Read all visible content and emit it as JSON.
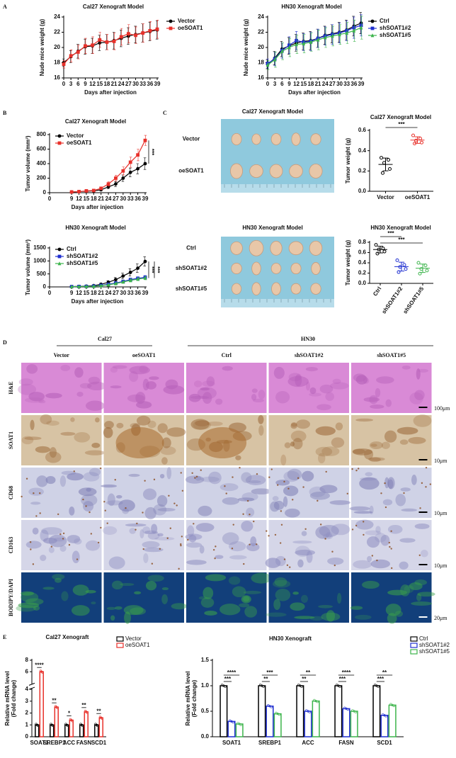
{
  "panel_labels": [
    "A",
    "B",
    "C",
    "D",
    "E"
  ],
  "chart_data": [
    {
      "type": "line",
      "title": "Cal27 Xenograft Model",
      "x_label": "Days after injection",
      "y_label": "Nude mice weight (g)",
      "x": [
        0,
        3,
        6,
        9,
        12,
        15,
        18,
        21,
        24,
        27,
        30,
        33,
        36,
        39
      ],
      "xlim": [
        0,
        39
      ],
      "xticks": [
        0,
        3,
        6,
        9,
        12,
        15,
        18,
        21,
        24,
        27,
        30,
        33,
        36,
        39
      ],
      "ylim": [
        16,
        24
      ],
      "yticks": [
        16,
        18,
        20,
        22,
        24
      ],
      "legend": "right",
      "series": [
        {
          "name": "Vector",
          "color": "#000000",
          "marker": "circle",
          "values": [
            18,
            18.8,
            19.5,
            20.1,
            20.2,
            20.6,
            20.7,
            20.9,
            21.2,
            21.5,
            21.7,
            21.9,
            22.1,
            22.3
          ],
          "errors": [
            0.5,
            0.8,
            0.9,
            1.0,
            1.0,
            1.0,
            1.0,
            1.1,
            1.1,
            1.1,
            1.1,
            1.2,
            1.2,
            1.2
          ]
        },
        {
          "name": "oeSOAT1",
          "color": "#e8302a",
          "marker": "square",
          "values": [
            17.8,
            18.9,
            19.4,
            20.2,
            20.3,
            21.0,
            20.7,
            20.8,
            21.4,
            21.8,
            21.6,
            21.9,
            22.2,
            22.4
          ],
          "errors": [
            0.5,
            0.8,
            0.9,
            1.0,
            1.1,
            1.0,
            1.0,
            1.1,
            1.1,
            1.2,
            1.1,
            1.2,
            1.2,
            1.2
          ]
        }
      ]
    },
    {
      "type": "line",
      "title": "HN30 Xenograft Model",
      "x_label": "Days after injection",
      "y_label": "Nude mice weight (g)",
      "x": [
        0,
        3,
        6,
        9,
        12,
        15,
        18,
        21,
        24,
        27,
        30,
        33,
        36,
        39
      ],
      "xlim": [
        0,
        39
      ],
      "xticks": [
        0,
        3,
        6,
        9,
        12,
        15,
        18,
        21,
        24,
        27,
        30,
        33,
        36,
        39
      ],
      "ylim": [
        16,
        24
      ],
      "yticks": [
        16,
        18,
        20,
        22,
        24
      ],
      "legend": "right",
      "series": [
        {
          "name": "Ctrl",
          "color": "#000000",
          "marker": "circle",
          "values": [
            17.8,
            18.6,
            19.8,
            20.2,
            20.6,
            20.8,
            20.9,
            21.2,
            21.6,
            21.8,
            22.0,
            22.3,
            22.8,
            23.2
          ],
          "errors": [
            0.6,
            0.9,
            1.0,
            1.1,
            1.1,
            1.1,
            1.2,
            1.2,
            1.2,
            1.2,
            1.3,
            1.3,
            1.3,
            1.4
          ]
        },
        {
          "name": "shSOAT1#2",
          "color": "#1f2fd0",
          "marker": "square",
          "values": [
            17.9,
            18.5,
            19.6,
            20.3,
            20.9,
            20.7,
            20.8,
            21.2,
            21.5,
            21.7,
            21.9,
            22.2,
            22.6,
            22.9
          ],
          "errors": [
            0.6,
            0.9,
            1.0,
            1.1,
            1.2,
            1.1,
            1.2,
            1.2,
            1.2,
            1.3,
            1.3,
            1.3,
            1.4,
            1.4
          ]
        },
        {
          "name": "shSOAT1#5",
          "color": "#3cb44b",
          "marker": "triangle",
          "values": [
            17.7,
            18.4,
            19.5,
            20.0,
            20.4,
            20.5,
            20.7,
            21.0,
            21.3,
            21.5,
            21.7,
            21.9,
            22.2,
            22.6
          ],
          "errors": [
            0.6,
            1.0,
            1.1,
            1.2,
            1.2,
            1.2,
            1.2,
            1.3,
            1.3,
            1.3,
            1.3,
            1.4,
            1.4,
            1.5
          ]
        }
      ]
    },
    {
      "type": "line",
      "title": "Cal27 Xenograft Model",
      "x_label": "Days after injection",
      "y_label": "Tumor volume (mm³)",
      "x": [
        9,
        12,
        15,
        18,
        21,
        24,
        27,
        30,
        33,
        36,
        39
      ],
      "xlim": [
        0,
        39
      ],
      "xticks": [
        0,
        9,
        12,
        15,
        18,
        21,
        24,
        27,
        30,
        33,
        36,
        39
      ],
      "ylim": [
        0,
        800
      ],
      "yticks": [
        0,
        200,
        400,
        600,
        800
      ],
      "legend": "upper-left",
      "annotations": [
        "***"
      ],
      "series": [
        {
          "name": "Vector",
          "color": "#000000",
          "marker": "circle",
          "values": [
            10,
            15,
            20,
            25,
            40,
            80,
            120,
            200,
            280,
            330,
            400
          ],
          "errors": [
            5,
            5,
            8,
            10,
            15,
            25,
            35,
            45,
            60,
            70,
            80
          ]
        },
        {
          "name": "oeSOAT1",
          "color": "#e8302a",
          "marker": "square",
          "values": [
            10,
            15,
            25,
            30,
            60,
            120,
            200,
            300,
            420,
            520,
            720
          ],
          "errors": [
            5,
            6,
            8,
            10,
            20,
            30,
            40,
            55,
            70,
            80,
            70
          ]
        }
      ]
    },
    {
      "type": "line",
      "title": "HN30 Xenograft Model",
      "x_label": "Days after injection",
      "y_label": "Tumor volume (mm³)",
      "x": [
        9,
        12,
        15,
        18,
        21,
        24,
        27,
        30,
        33,
        36,
        39
      ],
      "xlim": [
        0,
        39
      ],
      "xticks": [
        0,
        9,
        12,
        15,
        18,
        21,
        24,
        27,
        30,
        33,
        36,
        39
      ],
      "ylim": [
        0,
        1500
      ],
      "yticks": [
        0,
        500,
        1000,
        1500
      ],
      "legend": "upper-left",
      "annotations": [
        "***",
        "***"
      ],
      "series": [
        {
          "name": "Ctrl",
          "color": "#000000",
          "marker": "circle",
          "values": [
            10,
            20,
            30,
            50,
            100,
            180,
            280,
            420,
            560,
            720,
            980
          ],
          "errors": [
            5,
            8,
            12,
            20,
            40,
            60,
            80,
            110,
            140,
            160,
            180
          ]
        },
        {
          "name": "shSOAT1#2",
          "color": "#1f2fd0",
          "marker": "square",
          "values": [
            10,
            15,
            20,
            30,
            60,
            100,
            150,
            210,
            280,
            330,
            370
          ],
          "errors": [
            5,
            6,
            8,
            12,
            20,
            30,
            40,
            50,
            60,
            60,
            70
          ]
        },
        {
          "name": "shSOAT1#5",
          "color": "#3cb44b",
          "marker": "triangle",
          "values": [
            10,
            15,
            20,
            25,
            50,
            80,
            130,
            190,
            250,
            300,
            340
          ],
          "errors": [
            5,
            6,
            8,
            10,
            18,
            25,
            35,
            45,
            55,
            60,
            65
          ]
        }
      ]
    },
    {
      "type": "dot",
      "title": "Cal27 Xenograft Model",
      "y_label": "Tumor weight (g)",
      "categories": [
        "Vector",
        "oeSOAT1"
      ],
      "colors": [
        "#000000",
        "#e8302a"
      ],
      "values": [
        [
          0.33,
          0.31,
          0.28,
          0.22,
          0.18
        ],
        [
          0.55,
          0.52,
          0.5,
          0.48,
          0.47
        ]
      ],
      "ylim": [
        0,
        0.6
      ],
      "yticks": [
        {
          "value": 0,
          "label": "0.0"
        },
        0.2,
        0.4,
        0.6
      ],
      "significance": [
        "***"
      ],
      "rotate_labels": false
    },
    {
      "type": "dot",
      "title": "HN30 Xenograft Model",
      "y_label": "Tumor weight (g)",
      "categories": [
        "Ctrl",
        "shSOAT1#2",
        "shSOAT1#5"
      ],
      "colors": [
        "#000000",
        "#1f2fd0",
        "#3cb44b"
      ],
      "values": [
        [
          0.75,
          0.68,
          0.66,
          0.62,
          0.58
        ],
        [
          0.45,
          0.36,
          0.32,
          0.28,
          0.22
        ],
        [
          0.4,
          0.35,
          0.28,
          0.25,
          0.19
        ]
      ],
      "ylim": [
        0,
        0.8
      ],
      "yticks": [
        {
          "value": 0,
          "label": "0.0"
        },
        0.2,
        0.4,
        0.6,
        0.8
      ],
      "significance": [
        "***",
        "***"
      ],
      "rotate_labels": true
    },
    {
      "type": "bar",
      "title": "Cal27 Xenograft",
      "y_label": [
        "Relative mRNA level",
        "(Fold change)"
      ],
      "categories": [
        "SOAT1",
        "SREBP1",
        "ACC",
        "FASN",
        "SCD1"
      ],
      "ylim": [
        0,
        8
      ],
      "ybreak": 4,
      "yticks": [
        0,
        1,
        2,
        3,
        4,
        6,
        8
      ],
      "series": [
        {
          "name": "Vector",
          "color": "#000000",
          "values": [
            1,
            1,
            1,
            1,
            1
          ]
        },
        {
          "name": "oeSOAT1",
          "color": "#e8302a",
          "values": [
            6,
            2.5,
            1.4,
            2.1,
            1.6
          ]
        }
      ],
      "significance": [
        [
          "****"
        ],
        [
          "**"
        ],
        [
          "*"
        ],
        [
          "**"
        ],
        [
          "**"
        ]
      ]
    },
    {
      "type": "bar",
      "title": "HN30 Xenograft",
      "y_label": [
        "Relative mRNA level",
        "(Fold change)"
      ],
      "categories": [
        "SOAT1",
        "SREBP1",
        "ACC",
        "FASN",
        "SCD1"
      ],
      "ylim": [
        0,
        1.5
      ],
      "yticks": [
        {
          "value": 0,
          "label": "0.0"
        },
        0.5,
        {
          "value": 1,
          "label": "1.0"
        },
        1.5
      ],
      "series": [
        {
          "name": "Ctrl",
          "color": "#000000",
          "values": [
            1,
            1,
            1,
            1,
            1
          ]
        },
        {
          "name": "shSOAT1#2",
          "color": "#1f2fd0",
          "values": [
            0.3,
            0.6,
            0.5,
            0.55,
            0.42
          ]
        },
        {
          "name": "shSOAT1#5",
          "color": "#3cb44b",
          "values": [
            0.25,
            0.45,
            0.7,
            0.5,
            0.62
          ]
        }
      ],
      "significance": [
        [
          "***",
          "****"
        ],
        [
          "**",
          "***"
        ],
        [
          "**",
          "**"
        ],
        [
          "***",
          "****"
        ],
        [
          "***",
          "**"
        ]
      ]
    }
  ],
  "photos": [
    {
      "title": "Cal27 Xenograft Model",
      "rows": [
        "Vector",
        "oeSOAT1"
      ]
    },
    {
      "title": "HN30 Xenograft Model",
      "rows": [
        "Ctrl",
        "shSOAT1#2",
        "shSOAT1#5"
      ]
    }
  ],
  "histology": {
    "groups": [
      "Cal27",
      "HN30"
    ],
    "columns": [
      "Vector",
      "oeSOAT1",
      "Ctrl",
      "shSOAT1#2",
      "shSOAT1#5"
    ],
    "rows": [
      "H&E",
      "SOAT1",
      "CD68",
      "CD163",
      "BODIPY/DAPI"
    ],
    "scale_bars": [
      "100μm",
      "10μm",
      "10μm",
      "10μm",
      "20μm"
    ]
  }
}
